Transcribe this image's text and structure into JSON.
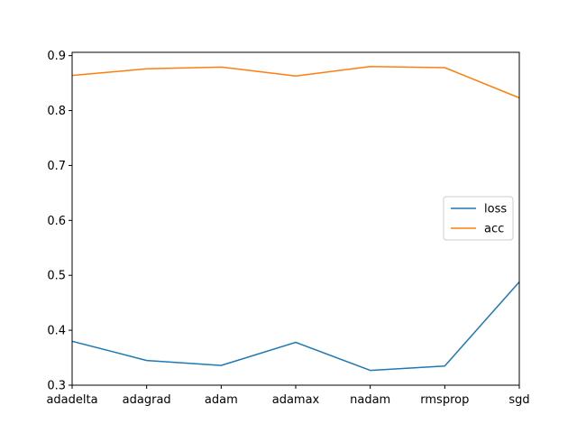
{
  "chart_data": {
    "type": "line",
    "categories": [
      "adadelta",
      "adagrad",
      "adam",
      "adamax",
      "nadam",
      "rmsprop",
      "sgd"
    ],
    "series": [
      {
        "name": "loss",
        "color": "#1f77b4",
        "values": [
          0.38,
          0.345,
          0.336,
          0.378,
          0.327,
          0.335,
          0.488
        ]
      },
      {
        "name": "acc",
        "color": "#ff7f0e",
        "values": [
          0.864,
          0.876,
          0.879,
          0.863,
          0.88,
          0.878,
          0.823
        ]
      }
    ],
    "ylim": [
      0.3,
      0.906
    ],
    "yticks": [
      "0.3",
      "0.4",
      "0.5",
      "0.6",
      "0.7",
      "0.8",
      "0.9"
    ],
    "legend_position": "center-right",
    "grid": false
  }
}
